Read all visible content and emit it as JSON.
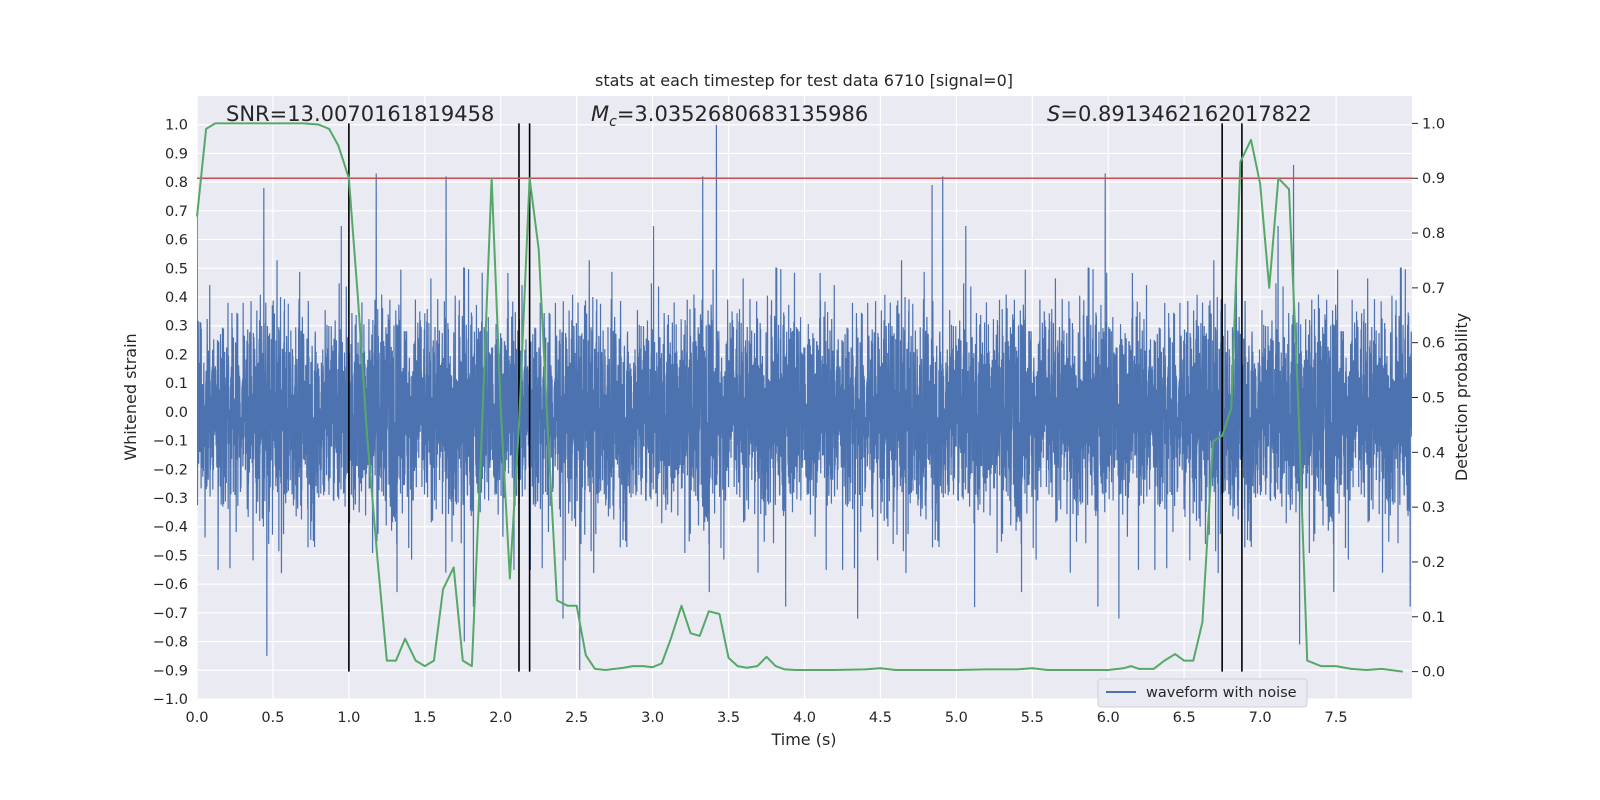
{
  "chart_data": {
    "type": "line",
    "title": "stats at each timestep for test data 6710 [signal=0]",
    "xlabel": "Time (s)",
    "ylabel": "Whitened strain",
    "y2label": "Detection probability",
    "xlim": [
      0,
      8
    ],
    "ylim": [
      -1.0,
      1.1
    ],
    "y2lim": [
      -0.05,
      1.05
    ],
    "xticks": [
      "0.0",
      "0.5",
      "1.0",
      "1.5",
      "2.0",
      "2.5",
      "3.0",
      "3.5",
      "4.0",
      "4.5",
      "5.0",
      "5.5",
      "6.0",
      "6.5",
      "7.0",
      "7.5"
    ],
    "yticks": [
      "−1.0",
      "−0.9",
      "−0.8",
      "−0.7",
      "−0.6",
      "−0.5",
      "−0.4",
      "−0.3",
      "−0.2",
      "−0.1",
      "0.0",
      "0.1",
      "0.2",
      "0.3",
      "0.4",
      "0.5",
      "0.6",
      "0.7",
      "0.8",
      "0.9",
      "1.0"
    ],
    "y2ticks": [
      "0.0",
      "0.1",
      "0.2",
      "0.3",
      "0.4",
      "0.5",
      "0.6",
      "0.7",
      "0.8",
      "0.9",
      "1.0"
    ],
    "grid": true,
    "legend": {
      "placement": "lower-right",
      "entries": [
        "waveform with noise"
      ]
    },
    "annotations": {
      "snr": "SNR=13.0070161819458",
      "mc_symbol": "M",
      "mc_sub": "c",
      "mc_value": "=3.0352680683135986",
      "s_symbol": "S",
      "s_value": "=0.8913462162017822"
    },
    "threshold": {
      "axis": "y2",
      "value": 0.9,
      "color": "#c44e52"
    },
    "vertical_lines": [
      {
        "x": 1.0,
        "y2_from": 0.0,
        "y2_to": 1.0
      },
      {
        "x": 2.12,
        "y2_from": 0.0,
        "y2_to": 1.0
      },
      {
        "x": 2.19,
        "y2_from": 0.0,
        "y2_to": 1.0
      },
      {
        "x": 6.75,
        "y2_from": 0.0,
        "y2_to": 1.0
      },
      {
        "x": 6.88,
        "y2_from": 0.0,
        "y2_to": 1.0
      }
    ],
    "series": [
      {
        "name": "waveform with noise",
        "axis": "y",
        "color": "#4c72b0",
        "style": "dense noise envelope",
        "fs": 1000,
        "typical_amplitude": 0.42,
        "spikes": [
          [
            0.44,
            0.78
          ],
          [
            0.46,
            -0.85
          ],
          [
            1.18,
            0.83
          ],
          [
            1.64,
            0.82
          ],
          [
            1.76,
            -0.8
          ],
          [
            2.41,
            -0.72
          ],
          [
            2.52,
            -0.9
          ],
          [
            3.42,
            1.0
          ],
          [
            3.33,
            0.82
          ],
          [
            4.84,
            0.79
          ],
          [
            4.91,
            0.82
          ],
          [
            5.98,
            0.83
          ],
          [
            6.07,
            -0.72
          ],
          [
            7.22,
            0.86
          ],
          [
            7.26,
            -0.81
          ],
          [
            4.35,
            -0.72
          ],
          [
            5.12,
            -0.68
          ]
        ]
      },
      {
        "name": "",
        "axis": "y2",
        "color": "#55a868",
        "x": [
          0.0,
          0.06,
          0.12,
          0.2,
          0.3,
          0.4,
          0.5,
          0.6,
          0.7,
          0.8,
          0.87,
          0.93,
          1.0,
          1.06,
          1.12,
          1.19,
          1.25,
          1.31,
          1.37,
          1.44,
          1.5,
          1.56,
          1.62,
          1.69,
          1.75,
          1.81,
          1.87,
          1.94,
          2.0,
          2.06,
          2.12,
          2.19,
          2.25,
          2.31,
          2.37,
          2.44,
          2.5,
          2.56,
          2.62,
          2.69,
          2.75,
          2.81,
          2.87,
          2.94,
          3.0,
          3.06,
          3.12,
          3.19,
          3.25,
          3.31,
          3.37,
          3.44,
          3.5,
          3.56,
          3.62,
          3.69,
          3.75,
          3.81,
          3.87,
          3.94,
          4.0,
          4.2,
          4.4,
          4.5,
          4.6,
          4.8,
          5.0,
          5.2,
          5.3,
          5.4,
          5.5,
          5.6,
          5.8,
          6.0,
          6.1,
          6.15,
          6.2,
          6.3,
          6.37,
          6.44,
          6.5,
          6.56,
          6.62,
          6.69,
          6.75,
          6.81,
          6.87,
          6.94,
          7.0,
          7.06,
          7.12,
          7.19,
          7.25,
          7.31,
          7.4,
          7.5,
          7.6,
          7.7,
          7.8,
          7.94
        ],
        "values": [
          0.83,
          0.99,
          1.0,
          1.0,
          1.0,
          1.0,
          1.0,
          1.0,
          1.0,
          0.998,
          0.99,
          0.96,
          0.9,
          0.68,
          0.43,
          0.2,
          0.02,
          0.02,
          0.06,
          0.02,
          0.01,
          0.02,
          0.15,
          0.19,
          0.02,
          0.01,
          0.4,
          0.9,
          0.48,
          0.17,
          0.45,
          0.9,
          0.77,
          0.44,
          0.13,
          0.12,
          0.12,
          0.03,
          0.005,
          0.003,
          0.005,
          0.007,
          0.01,
          0.01,
          0.008,
          0.015,
          0.06,
          0.12,
          0.07,
          0.065,
          0.11,
          0.105,
          0.025,
          0.01,
          0.007,
          0.01,
          0.027,
          0.01,
          0.004,
          0.003,
          0.003,
          0.003,
          0.004,
          0.006,
          0.003,
          0.003,
          0.003,
          0.004,
          0.004,
          0.004,
          0.006,
          0.003,
          0.003,
          0.003,
          0.006,
          0.01,
          0.005,
          0.005,
          0.02,
          0.032,
          0.02,
          0.02,
          0.09,
          0.42,
          0.43,
          0.48,
          0.93,
          0.97,
          0.89,
          0.7,
          0.9,
          0.88,
          0.5,
          0.02,
          0.01,
          0.01,
          0.005,
          0.003,
          0.005,
          0.0
        ]
      }
    ]
  }
}
